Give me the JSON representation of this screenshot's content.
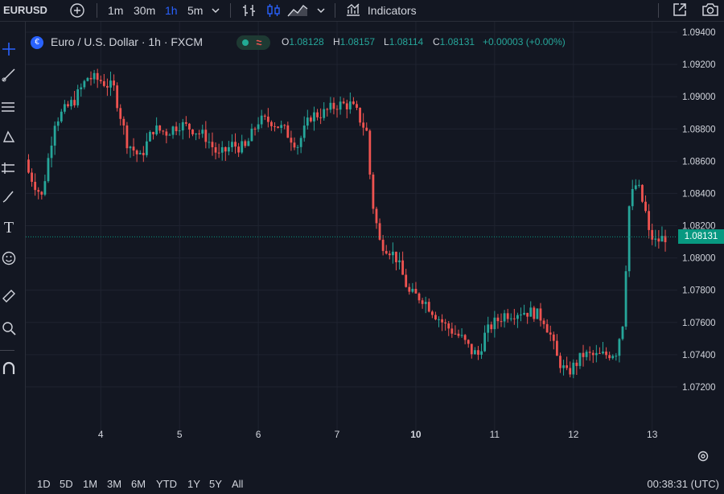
{
  "toolbar": {
    "symbol": "EURUSD",
    "intervals": [
      "1m",
      "30m",
      "1h",
      "5m"
    ],
    "active_interval": "1h",
    "indicators_label": "Indicators"
  },
  "legend": {
    "title": "Euro / U.S. Dollar · 1h · FXCM",
    "o_key": "O",
    "o_val": "1.08128",
    "h_key": "H",
    "h_val": "1.08157",
    "l_key": "L",
    "l_val": "1.08114",
    "c_key": "C",
    "c_val": "1.08131",
    "change": "+0.00003 (+0.00%)"
  },
  "last_price_label": "1.08131",
  "bottom": {
    "ranges": [
      "1D",
      "5D",
      "1M",
      "3M",
      "6M",
      "YTD",
      "1Y",
      "5Y",
      "All"
    ],
    "clock": "00:38:31 (UTC)"
  },
  "colors": {
    "up": "#26a69a",
    "down": "#ef5350",
    "background": "#131722",
    "grid": "#1f2330",
    "accent": "#2962ff"
  },
  "chart_data": {
    "type": "candlestick",
    "symbol": "EURUSD",
    "interval": "1h",
    "ylim": [
      1.0705,
      1.0942
    ],
    "y_ticks": [
      "1.09400",
      "1.09200",
      "1.09000",
      "1.08800",
      "1.08600",
      "1.08400",
      "1.08200",
      "1.08000",
      "1.07800",
      "1.07600",
      "1.07400",
      "1.07200"
    ],
    "y_tick_values": [
      1.094,
      1.092,
      1.09,
      1.088,
      1.086,
      1.084,
      1.082,
      1.08,
      1.078,
      1.076,
      1.074,
      1.072
    ],
    "x_ticks": [
      "4",
      "5",
      "6",
      "7",
      "10",
      "11",
      "12",
      "13"
    ],
    "x_tick_bold": [
      false,
      false,
      false,
      false,
      true,
      false,
      false,
      false
    ],
    "x_tick_index": [
      22,
      46,
      70,
      94,
      118,
      142,
      166,
      190
    ],
    "last_price": 1.08131,
    "close_path": [
      [
        0,
        1.0853
      ],
      [
        4,
        1.0838
      ],
      [
        8,
        1.0885
      ],
      [
        14,
        1.0898
      ],
      [
        18,
        1.0912
      ],
      [
        22,
        1.091
      ],
      [
        26,
        1.0905
      ],
      [
        30,
        1.0872
      ],
      [
        34,
        1.0862
      ],
      [
        38,
        1.088
      ],
      [
        42,
        1.0878
      ],
      [
        46,
        1.0883
      ],
      [
        50,
        1.088
      ],
      [
        54,
        1.0875
      ],
      [
        58,
        1.0863
      ],
      [
        62,
        1.087
      ],
      [
        66,
        1.0868
      ],
      [
        70,
        1.0885
      ],
      [
        74,
        1.0885
      ],
      [
        78,
        1.0879
      ],
      [
        82,
        1.087
      ],
      [
        86,
        1.0888
      ],
      [
        90,
        1.089
      ],
      [
        94,
        1.0895
      ],
      [
        98,
        1.0895
      ],
      [
        100,
        1.089
      ],
      [
        103,
        1.0878
      ],
      [
        104,
        1.0852
      ],
      [
        105,
        1.0832
      ],
      [
        107,
        1.081
      ],
      [
        110,
        1.0805
      ],
      [
        112,
        1.08
      ],
      [
        116,
        1.0778
      ],
      [
        120,
        1.0775
      ],
      [
        124,
        1.0765
      ],
      [
        127,
        1.0758
      ],
      [
        129,
        1.0755
      ],
      [
        132,
        1.075
      ],
      [
        135,
        1.0742
      ],
      [
        137,
        1.074
      ],
      [
        139,
        1.0752
      ],
      [
        141,
        1.0758
      ],
      [
        145,
        1.0765
      ],
      [
        150,
        1.0767
      ],
      [
        154,
        1.0766
      ],
      [
        157,
        1.0762
      ],
      [
        159,
        1.0752
      ],
      [
        161,
        1.0738
      ],
      [
        164,
        1.0728
      ],
      [
        167,
        1.0735
      ],
      [
        169,
        1.074
      ],
      [
        173,
        1.0739
      ],
      [
        176,
        1.074
      ],
      [
        179,
        1.0742
      ],
      [
        181,
        1.076
      ],
      [
        182,
        1.0795
      ],
      [
        183,
        1.0832
      ],
      [
        184,
        1.084
      ],
      [
        185,
        1.0845
      ],
      [
        186,
        1.0842
      ],
      [
        188,
        1.0828
      ],
      [
        189,
        1.0815
      ],
      [
        191,
        1.081
      ],
      [
        194,
        1.0813
      ]
    ]
  }
}
